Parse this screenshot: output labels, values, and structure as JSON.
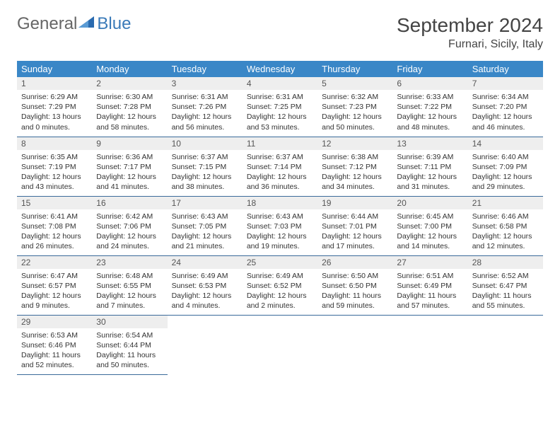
{
  "logo": {
    "part1": "General",
    "part2": "Blue"
  },
  "title": "September 2024",
  "location": "Furnari, Sicily, Italy",
  "header_bg": "#3a87c7",
  "header_fg": "#ffffff",
  "row_divider": "#3a6a9a",
  "daynum_bg": "#eeeeee",
  "week_headers": [
    "Sunday",
    "Monday",
    "Tuesday",
    "Wednesday",
    "Thursday",
    "Friday",
    "Saturday"
  ],
  "days": [
    {
      "n": "1",
      "sunrise": "Sunrise: 6:29 AM",
      "sunset": "Sunset: 7:29 PM",
      "daylight": "Daylight: 13 hours and 0 minutes."
    },
    {
      "n": "2",
      "sunrise": "Sunrise: 6:30 AM",
      "sunset": "Sunset: 7:28 PM",
      "daylight": "Daylight: 12 hours and 58 minutes."
    },
    {
      "n": "3",
      "sunrise": "Sunrise: 6:31 AM",
      "sunset": "Sunset: 7:26 PM",
      "daylight": "Daylight: 12 hours and 56 minutes."
    },
    {
      "n": "4",
      "sunrise": "Sunrise: 6:31 AM",
      "sunset": "Sunset: 7:25 PM",
      "daylight": "Daylight: 12 hours and 53 minutes."
    },
    {
      "n": "5",
      "sunrise": "Sunrise: 6:32 AM",
      "sunset": "Sunset: 7:23 PM",
      "daylight": "Daylight: 12 hours and 50 minutes."
    },
    {
      "n": "6",
      "sunrise": "Sunrise: 6:33 AM",
      "sunset": "Sunset: 7:22 PM",
      "daylight": "Daylight: 12 hours and 48 minutes."
    },
    {
      "n": "7",
      "sunrise": "Sunrise: 6:34 AM",
      "sunset": "Sunset: 7:20 PM",
      "daylight": "Daylight: 12 hours and 46 minutes."
    },
    {
      "n": "8",
      "sunrise": "Sunrise: 6:35 AM",
      "sunset": "Sunset: 7:19 PM",
      "daylight": "Daylight: 12 hours and 43 minutes."
    },
    {
      "n": "9",
      "sunrise": "Sunrise: 6:36 AM",
      "sunset": "Sunset: 7:17 PM",
      "daylight": "Daylight: 12 hours and 41 minutes."
    },
    {
      "n": "10",
      "sunrise": "Sunrise: 6:37 AM",
      "sunset": "Sunset: 7:15 PM",
      "daylight": "Daylight: 12 hours and 38 minutes."
    },
    {
      "n": "11",
      "sunrise": "Sunrise: 6:37 AM",
      "sunset": "Sunset: 7:14 PM",
      "daylight": "Daylight: 12 hours and 36 minutes."
    },
    {
      "n": "12",
      "sunrise": "Sunrise: 6:38 AM",
      "sunset": "Sunset: 7:12 PM",
      "daylight": "Daylight: 12 hours and 34 minutes."
    },
    {
      "n": "13",
      "sunrise": "Sunrise: 6:39 AM",
      "sunset": "Sunset: 7:11 PM",
      "daylight": "Daylight: 12 hours and 31 minutes."
    },
    {
      "n": "14",
      "sunrise": "Sunrise: 6:40 AM",
      "sunset": "Sunset: 7:09 PM",
      "daylight": "Daylight: 12 hours and 29 minutes."
    },
    {
      "n": "15",
      "sunrise": "Sunrise: 6:41 AM",
      "sunset": "Sunset: 7:08 PM",
      "daylight": "Daylight: 12 hours and 26 minutes."
    },
    {
      "n": "16",
      "sunrise": "Sunrise: 6:42 AM",
      "sunset": "Sunset: 7:06 PM",
      "daylight": "Daylight: 12 hours and 24 minutes."
    },
    {
      "n": "17",
      "sunrise": "Sunrise: 6:43 AM",
      "sunset": "Sunset: 7:05 PM",
      "daylight": "Daylight: 12 hours and 21 minutes."
    },
    {
      "n": "18",
      "sunrise": "Sunrise: 6:43 AM",
      "sunset": "Sunset: 7:03 PM",
      "daylight": "Daylight: 12 hours and 19 minutes."
    },
    {
      "n": "19",
      "sunrise": "Sunrise: 6:44 AM",
      "sunset": "Sunset: 7:01 PM",
      "daylight": "Daylight: 12 hours and 17 minutes."
    },
    {
      "n": "20",
      "sunrise": "Sunrise: 6:45 AM",
      "sunset": "Sunset: 7:00 PM",
      "daylight": "Daylight: 12 hours and 14 minutes."
    },
    {
      "n": "21",
      "sunrise": "Sunrise: 6:46 AM",
      "sunset": "Sunset: 6:58 PM",
      "daylight": "Daylight: 12 hours and 12 minutes."
    },
    {
      "n": "22",
      "sunrise": "Sunrise: 6:47 AM",
      "sunset": "Sunset: 6:57 PM",
      "daylight": "Daylight: 12 hours and 9 minutes."
    },
    {
      "n": "23",
      "sunrise": "Sunrise: 6:48 AM",
      "sunset": "Sunset: 6:55 PM",
      "daylight": "Daylight: 12 hours and 7 minutes."
    },
    {
      "n": "24",
      "sunrise": "Sunrise: 6:49 AM",
      "sunset": "Sunset: 6:53 PM",
      "daylight": "Daylight: 12 hours and 4 minutes."
    },
    {
      "n": "25",
      "sunrise": "Sunrise: 6:49 AM",
      "sunset": "Sunset: 6:52 PM",
      "daylight": "Daylight: 12 hours and 2 minutes."
    },
    {
      "n": "26",
      "sunrise": "Sunrise: 6:50 AM",
      "sunset": "Sunset: 6:50 PM",
      "daylight": "Daylight: 11 hours and 59 minutes."
    },
    {
      "n": "27",
      "sunrise": "Sunrise: 6:51 AM",
      "sunset": "Sunset: 6:49 PM",
      "daylight": "Daylight: 11 hours and 57 minutes."
    },
    {
      "n": "28",
      "sunrise": "Sunrise: 6:52 AM",
      "sunset": "Sunset: 6:47 PM",
      "daylight": "Daylight: 11 hours and 55 minutes."
    },
    {
      "n": "29",
      "sunrise": "Sunrise: 6:53 AM",
      "sunset": "Sunset: 6:46 PM",
      "daylight": "Daylight: 11 hours and 52 minutes."
    },
    {
      "n": "30",
      "sunrise": "Sunrise: 6:54 AM",
      "sunset": "Sunset: 6:44 PM",
      "daylight": "Daylight: 11 hours and 50 minutes."
    }
  ]
}
